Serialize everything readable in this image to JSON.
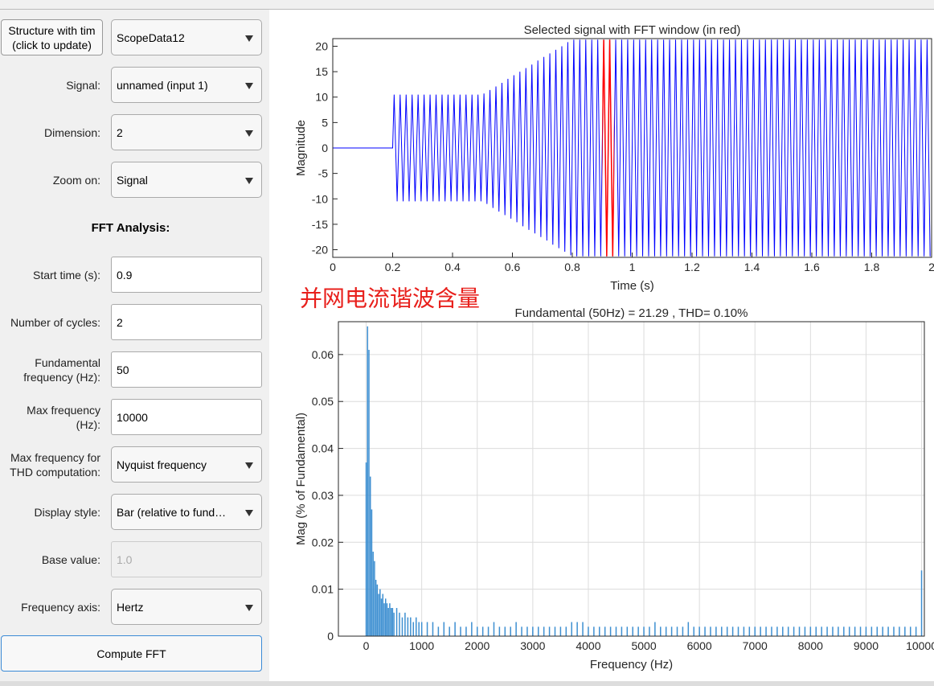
{
  "panel": {
    "structure_button": "Structure with tim\n(click to update)",
    "structure_value": "ScopeData12",
    "section_title": "FFT Analysis:",
    "compute_button": "Compute FFT",
    "rows": [
      {
        "label": "Signal:",
        "value": "unnamed (input 1)"
      },
      {
        "label": "Dimension:",
        "value": "2"
      },
      {
        "label": "Zoom on:",
        "value": "Signal"
      },
      {
        "label": "Start time (s):",
        "value": "0.9"
      },
      {
        "label": "Number of cycles:",
        "value": "2"
      },
      {
        "label": "Fundamental frequency (Hz):",
        "value": "50"
      },
      {
        "label": "Max frequency (Hz):",
        "value": "10000"
      },
      {
        "label": "Max frequency for THD computation:",
        "value": "Nyquist frequency"
      },
      {
        "label": "Display style:",
        "value": "Bar (relative to fund…"
      },
      {
        "label": "Base value:",
        "value": "1.0"
      },
      {
        "label": "Frequency axis:",
        "value": "Hertz"
      }
    ]
  },
  "annotation": "并网电流谐波含量",
  "chart_data": [
    {
      "type": "line",
      "title": "Selected signal with FFT window (in red)",
      "xlabel": "Time (s)",
      "ylabel": "Magnitude",
      "xlim": [
        0,
        2
      ],
      "ylim": [
        -21.5,
        21.5
      ],
      "xticks": [
        0,
        0.2,
        0.4,
        0.6,
        0.8,
        1,
        1.2,
        1.4,
        1.6,
        1.8,
        2
      ],
      "yticks": [
        -20,
        -15,
        -10,
        -5,
        0,
        5,
        10,
        15,
        20
      ],
      "x": [
        0,
        0.2,
        0.205,
        0.215,
        0.225,
        0.235,
        0.245,
        0.255,
        0.265,
        0.275,
        0.285,
        0.295,
        0.305,
        0.315,
        0.325,
        0.335,
        0.345,
        0.355,
        0.365,
        0.375,
        0.385,
        0.395,
        0.405,
        0.415,
        0.425,
        0.435,
        0.445,
        0.455,
        0.465,
        0.475,
        0.485,
        0.495,
        0.505,
        0.515,
        0.525,
        0.535,
        0.545,
        0.555,
        0.565,
        0.575,
        0.585,
        0.595,
        0.605,
        0.615,
        0.625,
        0.635,
        0.645,
        0.655,
        0.665,
        0.675,
        0.685,
        0.695,
        0.705,
        0.715,
        0.725,
        0.735,
        0.745,
        0.755,
        0.765,
        0.775,
        0.785,
        0.795,
        0.805,
        0.815,
        0.825,
        0.835,
        0.845,
        0.855,
        0.865,
        0.875,
        0.885,
        0.895,
        0.905,
        0.915,
        0.925,
        0.935,
        0.945,
        0.955,
        0.965,
        0.975,
        0.985,
        0.995,
        1.005,
        1.015,
        1.025,
        1.035,
        1.045,
        1.055,
        1.065,
        1.075,
        1.085,
        1.095,
        1.105,
        1.115,
        1.125,
        1.135,
        1.145,
        1.155,
        1.165,
        1.175,
        1.185,
        1.195,
        1.205,
        1.215,
        1.225,
        1.235,
        1.245,
        1.255,
        1.265,
        1.275,
        1.285,
        1.295,
        1.305,
        1.315,
        1.325,
        1.335,
        1.345,
        1.355,
        1.365,
        1.375,
        1.385,
        1.395,
        1.405,
        1.415,
        1.425,
        1.435,
        1.445,
        1.455,
        1.465,
        1.475,
        1.485,
        1.495,
        1.505,
        1.515,
        1.525,
        1.535,
        1.545,
        1.555,
        1.565,
        1.575,
        1.585,
        1.595,
        1.605,
        1.615,
        1.625,
        1.635,
        1.645,
        1.655,
        1.665,
        1.675,
        1.685,
        1.695,
        1.705,
        1.715,
        1.725,
        1.735,
        1.745,
        1.755,
        1.765,
        1.775,
        1.785,
        1.795,
        1.805,
        1.815,
        1.825,
        1.835,
        1.845,
        1.855,
        1.865,
        1.875,
        1.885,
        1.895,
        1.905,
        1.915,
        1.925,
        1.935,
        1.945,
        1.955,
        1.965,
        1.975,
        1.985,
        1.995
      ],
      "series": [
        {
          "color": "#0000ff",
          "values": [
            0,
            0,
            10.5,
            -10.5,
            10.5,
            -10.5,
            10.5,
            -10.5,
            10.5,
            -10.5,
            10.5,
            -10.5,
            10.5,
            -10.5,
            10.5,
            -10.5,
            10.5,
            -10.5,
            10.5,
            -10.5,
            10.5,
            -10.5,
            10.5,
            -10.5,
            10.5,
            -10.5,
            10.5,
            -10.5,
            10.5,
            -10.5,
            10.5,
            -10.5,
            10.7,
            -11.0,
            11.4,
            -11.8,
            12.1,
            -12.5,
            12.8,
            -13.2,
            13.6,
            -13.9,
            14.3,
            -14.6,
            15.0,
            -15.4,
            15.7,
            -16.1,
            16.4,
            -16.8,
            17.2,
            -17.5,
            17.9,
            -18.2,
            18.6,
            -19.0,
            19.3,
            -19.7,
            20.0,
            -20.4,
            20.8,
            -21.1,
            21.3,
            -21.3,
            21.3,
            -21.3,
            21.3,
            -21.3,
            21.3,
            -21.3,
            21.3,
            -21.3,
            21.3,
            -21.3,
            21.3,
            -21.3,
            21.3,
            -21.3,
            21.3,
            -21.3,
            21.3,
            -21.3,
            21.3,
            -21.3,
            21.3,
            -21.3,
            21.3,
            -21.3,
            21.3,
            -21.3,
            21.3,
            -21.3,
            21.3,
            -21.3,
            21.3,
            -21.3,
            21.3,
            -21.3,
            21.3,
            -21.3,
            21.3,
            -21.3,
            21.3,
            -21.3,
            21.3,
            -21.3,
            21.3,
            -21.3,
            21.3,
            -21.3,
            21.3,
            -21.3,
            21.3,
            -21.3,
            21.3,
            -21.3,
            21.3,
            -21.3,
            21.3,
            -21.3,
            21.3,
            -21.3,
            21.3,
            -21.3,
            21.3,
            -21.3,
            21.3,
            -21.3,
            21.3,
            -21.3,
            21.3,
            -21.3,
            21.3,
            -21.3,
            21.3,
            -21.3,
            21.3,
            -21.3,
            21.3,
            -21.3,
            21.3,
            -21.3,
            21.3,
            -21.3,
            21.3,
            -21.3,
            21.3,
            -21.3,
            21.3,
            -21.3,
            21.3,
            -21.3,
            21.3,
            -21.3,
            21.3,
            -21.3,
            21.3,
            -21.3,
            21.3,
            -21.3,
            21.3,
            -21.3,
            21.3,
            -21.3,
            21.3,
            -21.3,
            21.3,
            -21.3,
            21.3,
            -21.3,
            21.3,
            -21.3,
            21.3,
            -21.3,
            21.3,
            -21.3,
            21.3,
            -21.3,
            21.3,
            -21.3,
            21.3,
            -21.3
          ]
        }
      ]
    },
    {
      "type": "bar",
      "title": "Fundamental (50Hz) = 21.29 , THD= 0.10%",
      "xlabel": "Frequency (Hz)",
      "ylabel": "Mag (% of Fundamental)",
      "xlim": [
        -500,
        10050
      ],
      "ylim": [
        0,
        0.067
      ],
      "xticks": [
        0,
        1000,
        2000,
        3000,
        4000,
        5000,
        6000,
        7000,
        8000,
        9000,
        10000
      ],
      "yticks": [
        0,
        0.01,
        0.02,
        0.03,
        0.04,
        0.05,
        0.06
      ],
      "grid": true,
      "color": "#3d8fd1",
      "x": [
        0,
        25,
        50,
        75,
        100,
        125,
        150,
        175,
        200,
        225,
        250,
        275,
        300,
        325,
        350,
        375,
        400,
        425,
        450,
        475,
        500,
        550,
        600,
        650,
        700,
        750,
        800,
        850,
        900,
        950,
        1000,
        1100,
        1200,
        1300,
        1400,
        1500,
        1600,
        1700,
        1800,
        1900,
        2000,
        2100,
        2200,
        2300,
        2400,
        2500,
        2600,
        2700,
        2800,
        2900,
        3000,
        3100,
        3200,
        3300,
        3400,
        3500,
        3600,
        3700,
        3800,
        3900,
        4000,
        4100,
        4200,
        4300,
        4400,
        4500,
        4600,
        4700,
        4800,
        4900,
        5000,
        5100,
        5200,
        5300,
        5400,
        5500,
        5600,
        5700,
        5800,
        5900,
        6000,
        6100,
        6200,
        6300,
        6400,
        6500,
        6600,
        6700,
        6800,
        6900,
        7000,
        7100,
        7200,
        7300,
        7400,
        7500,
        7600,
        7700,
        7800,
        7900,
        8000,
        8100,
        8200,
        8300,
        8400,
        8500,
        8600,
        8700,
        8800,
        8900,
        9000,
        9100,
        9200,
        9300,
        9400,
        9500,
        9600,
        9700,
        9800,
        9900,
        10000
      ],
      "values": [
        0.037,
        0.066,
        0.061,
        0.034,
        0.027,
        0.018,
        0.016,
        0.012,
        0.011,
        0.009,
        0.01,
        0.008,
        0.009,
        0.007,
        0.008,
        0.007,
        0.006,
        0.007,
        0.006,
        0.006,
        0.005,
        0.006,
        0.005,
        0.004,
        0.005,
        0.004,
        0.004,
        0.003,
        0.004,
        0.003,
        0.003,
        0.003,
        0.003,
        0.002,
        0.003,
        0.002,
        0.003,
        0.002,
        0.002,
        0.003,
        0.002,
        0.002,
        0.002,
        0.003,
        0.002,
        0.002,
        0.002,
        0.003,
        0.002,
        0.002,
        0.002,
        0.002,
        0.002,
        0.002,
        0.002,
        0.002,
        0.002,
        0.003,
        0.003,
        0.003,
        0.002,
        0.002,
        0.002,
        0.002,
        0.002,
        0.002,
        0.002,
        0.002,
        0.002,
        0.002,
        0.002,
        0.002,
        0.003,
        0.002,
        0.002,
        0.002,
        0.002,
        0.002,
        0.003,
        0.002,
        0.002,
        0.002,
        0.002,
        0.002,
        0.002,
        0.002,
        0.002,
        0.002,
        0.002,
        0.002,
        0.002,
        0.002,
        0.002,
        0.002,
        0.002,
        0.002,
        0.002,
        0.002,
        0.002,
        0.002,
        0.002,
        0.002,
        0.002,
        0.002,
        0.002,
        0.002,
        0.002,
        0.002,
        0.002,
        0.002,
        0.002,
        0.002,
        0.002,
        0.002,
        0.002,
        0.002,
        0.002,
        0.002,
        0.002,
        0.002,
        0.014
      ]
    }
  ]
}
